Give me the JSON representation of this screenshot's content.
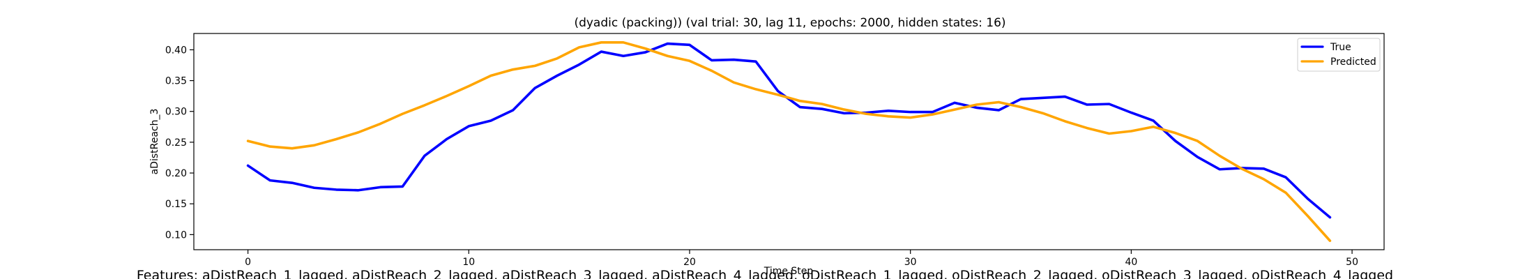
{
  "chart_data": {
    "type": "line",
    "title": "(dyadic (packing)) (val trial: 30, lag 11, epochs: 2000, hidden states: 16)",
    "xlabel": "Time Step",
    "ylabel": "aDistReach_3",
    "xlim": [
      -2.45,
      51.45
    ],
    "ylim": [
      0.0755,
      0.4265
    ],
    "x_ticks": [
      0,
      10,
      20,
      30,
      40,
      50
    ],
    "y_ticks": [
      0.1,
      0.15,
      0.2,
      0.25,
      0.3,
      0.35,
      0.4
    ],
    "grid": false,
    "legend_position": "upper-right",
    "x": [
      0,
      1,
      2,
      3,
      4,
      5,
      6,
      7,
      8,
      9,
      10,
      11,
      12,
      13,
      14,
      15,
      16,
      17,
      18,
      19,
      20,
      21,
      22,
      23,
      24,
      25,
      26,
      27,
      28,
      29,
      30,
      31,
      32,
      33,
      34,
      35,
      36,
      37,
      38,
      39,
      40,
      41,
      42,
      43,
      44,
      45,
      46,
      47,
      48,
      49
    ],
    "series": [
      {
        "name": "True",
        "color": "#0000ff",
        "values": [
          0.212,
          0.188,
          0.184,
          0.176,
          0.173,
          0.172,
          0.177,
          0.178,
          0.228,
          0.255,
          0.276,
          0.285,
          0.302,
          0.338,
          0.358,
          0.376,
          0.397,
          0.39,
          0.396,
          0.41,
          0.408,
          0.383,
          0.384,
          0.381,
          0.333,
          0.307,
          0.304,
          0.297,
          0.298,
          0.301,
          0.299,
          0.299,
          0.314,
          0.306,
          0.302,
          0.32,
          0.322,
          0.324,
          0.311,
          0.312,
          0.298,
          0.285,
          0.252,
          0.226,
          0.206,
          0.208,
          0.207,
          0.193,
          0.158,
          0.128
        ]
      },
      {
        "name": "Predicted",
        "color": "#ffa500",
        "values": [
          0.252,
          0.243,
          0.24,
          0.245,
          0.255,
          0.266,
          0.28,
          0.296,
          0.31,
          0.325,
          0.341,
          0.358,
          0.368,
          0.374,
          0.386,
          0.404,
          0.412,
          0.412,
          0.402,
          0.39,
          0.382,
          0.366,
          0.347,
          0.336,
          0.327,
          0.317,
          0.312,
          0.303,
          0.296,
          0.292,
          0.29,
          0.295,
          0.303,
          0.311,
          0.315,
          0.307,
          0.297,
          0.284,
          0.273,
          0.264,
          0.268,
          0.275,
          0.265,
          0.252,
          0.228,
          0.207,
          0.19,
          0.168,
          0.13,
          0.09
        ]
      }
    ]
  },
  "footer_text": "Features: aDistReach_1_lagged, aDistReach_2_lagged, aDistReach_3_lagged, aDistReach_4_lagged, oDistReach_1_lagged, oDistReach_2_lagged, oDistReach_3_lagged, oDistReach_4_lagged"
}
